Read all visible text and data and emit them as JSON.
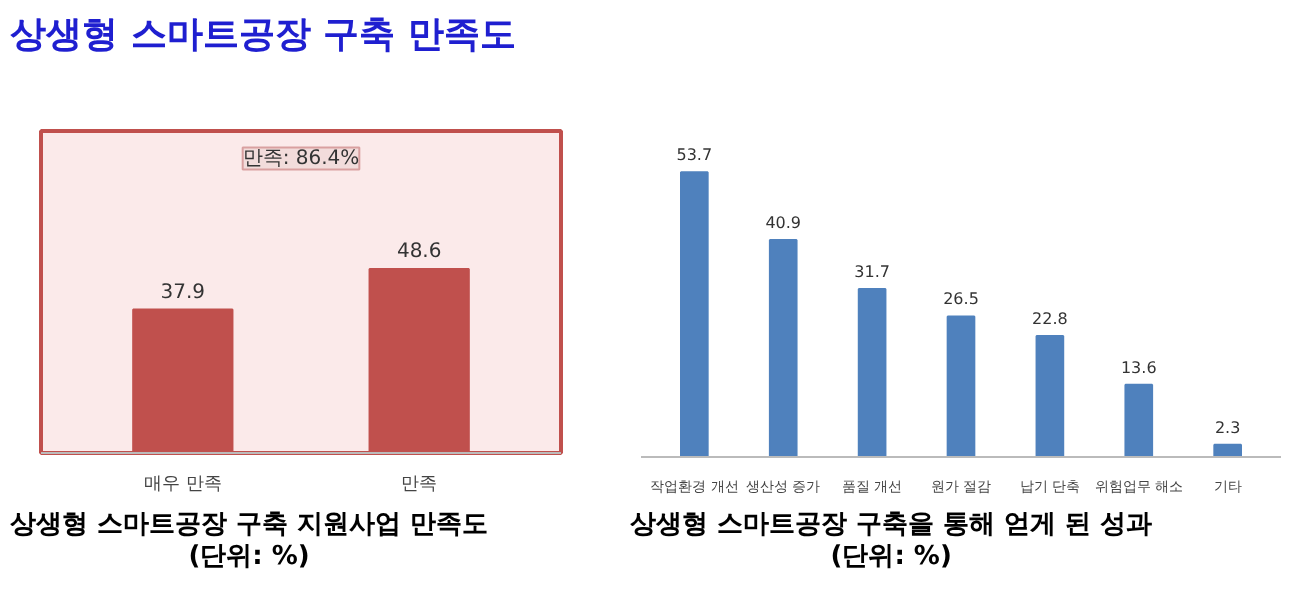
{
  "chart_data": [
    {
      "type": "bar",
      "title": "상생형 스마트공장 구축 지원사업 만족도",
      "subtitle": "(단위: %)",
      "annotations": [
        "상생형 스마트공장 구축 만족도",
        "만족: 86.4%"
      ],
      "categories": [
        "매우 만족",
        "만족"
      ],
      "values": [
        37.9,
        48.6
      ],
      "color": "#c0504d",
      "data_labels": true
    },
    {
      "type": "bar",
      "title": "상생형 스마트공장 구축을 통해 얻게 된 성과",
      "subtitle": "(단위: %)",
      "categories": [
        "작업환경 개선",
        "생산성 증가",
        "품질 개선",
        "원가 절감",
        "납기 단축",
        "위험업무 해소",
        "기타"
      ],
      "values": [
        53.7,
        40.9,
        31.7,
        26.5,
        22.8,
        13.6,
        2.3
      ],
      "color": "#4f81bd",
      "data_labels": true
    }
  ]
}
